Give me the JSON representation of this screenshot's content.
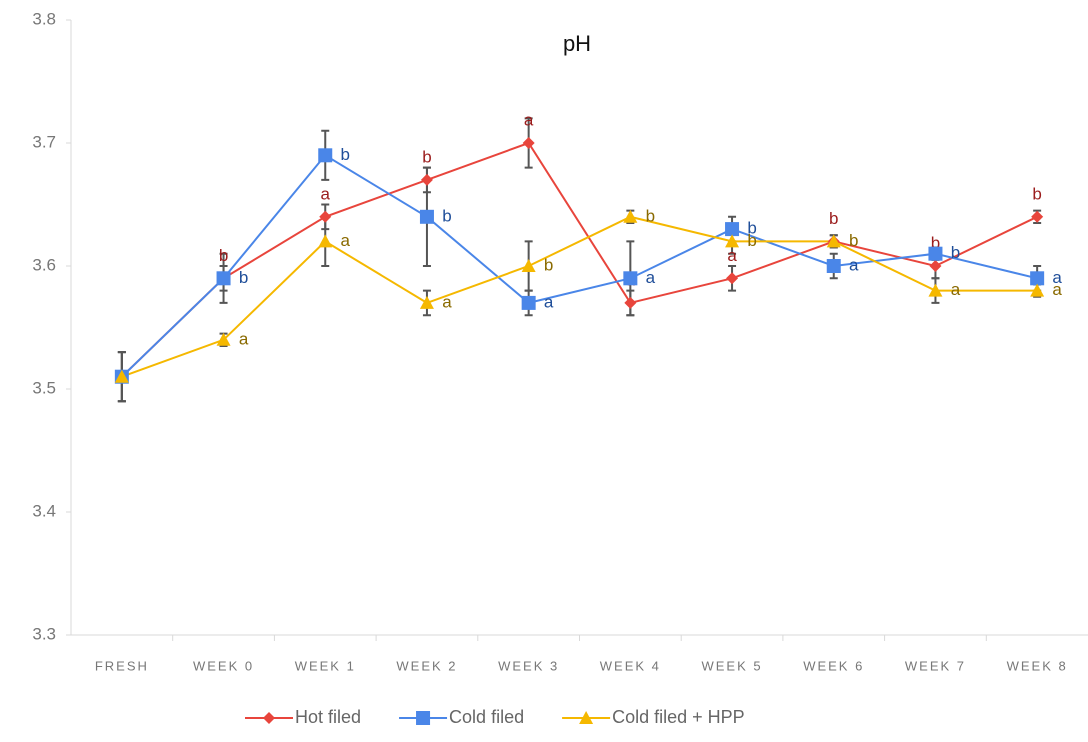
{
  "chart_data": {
    "type": "line",
    "title": "pH",
    "categories": [
      "FRESH",
      "WEEK 0",
      "WEEK 1",
      "WEEK 2",
      "WEEK 3",
      "WEEK 4",
      "WEEK 5",
      "WEEK 6",
      "WEEK 7",
      "WEEK 8"
    ],
    "ylim": [
      3.3,
      3.8
    ],
    "yticks": [
      3.3,
      3.4,
      3.5,
      3.6,
      3.7,
      3.8
    ],
    "grid": false,
    "legend": "bottom",
    "series": [
      {
        "name": "Hot filed",
        "color": "#e8453c",
        "marker": "diamond",
        "values": [
          3.51,
          3.59,
          3.64,
          3.67,
          3.7,
          3.57,
          3.59,
          3.62,
          3.6,
          3.64
        ],
        "errors": [
          0.02,
          0.02,
          0.01,
          0.01,
          0.02,
          0.01,
          0.01,
          0.005,
          0.01,
          0.005
        ],
        "letters": [
          null,
          "b",
          "a",
          "b",
          "a",
          "a",
          "a",
          "b",
          "b",
          "b"
        ],
        "letter_color": "#9b1c1c"
      },
      {
        "name": "Cold filed",
        "color": "#4a86e8",
        "marker": "square",
        "values": [
          3.51,
          3.59,
          3.69,
          3.64,
          3.57,
          3.59,
          3.63,
          3.6,
          3.61,
          3.59
        ],
        "errors": [
          0.02,
          0.01,
          0.02,
          0.04,
          0.01,
          0.03,
          0.01,
          0.01,
          0.005,
          0.01
        ],
        "letters": [
          null,
          "b",
          "b",
          "b",
          "a",
          "a",
          "b",
          "a",
          "b",
          "a"
        ],
        "letter_color": "#1f4e99"
      },
      {
        "name": "Cold filed + HPP",
        "color": "#f5b800",
        "marker": "triangle",
        "values": [
          3.51,
          3.54,
          3.62,
          3.57,
          3.6,
          3.64,
          3.62,
          3.62,
          3.58,
          3.58
        ],
        "errors": [
          0.02,
          0.005,
          0.02,
          0.01,
          0.02,
          0.005,
          0.01,
          0.005,
          0.01,
          0.005
        ],
        "letters": [
          null,
          "a",
          "a",
          "a",
          "b",
          "b",
          "b",
          "b",
          "a",
          "a"
        ],
        "letter_color": "#8a6a00"
      }
    ]
  }
}
